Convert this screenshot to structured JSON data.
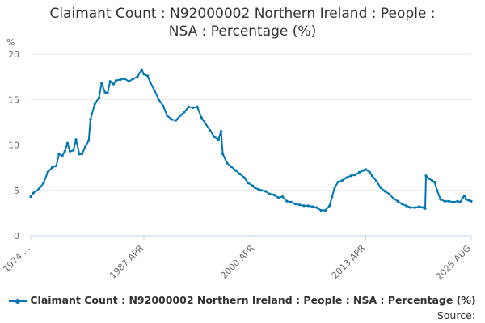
{
  "title_line1": "Claimant Count : N92000002 Northern Ireland : People :",
  "title_line2": "NSA : Percentage (%)",
  "source_label": "Source:",
  "colors": {
    "series": "#0077b3",
    "grid": "#e6e6e6",
    "axis": "#c0d0e0",
    "text": "#666666"
  },
  "chart_data": {
    "type": "line",
    "title": "Claimant Count : N92000002 Northern Ireland : People : NSA : Percentage (%)",
    "ylabel": "%",
    "xlabel": "",
    "ylim": [
      0,
      20
    ],
    "yticks": [
      0,
      5,
      10,
      15,
      20
    ],
    "xlim": [
      1974.0,
      2025.6
    ],
    "xticks": [
      {
        "x": 1974.0,
        "label": "1974 ..."
      },
      {
        "x": 1987.25,
        "label": "1987 APR"
      },
      {
        "x": 2000.25,
        "label": "2000 APR"
      },
      {
        "x": 2013.25,
        "label": "2013 APR"
      },
      {
        "x": 2025.6,
        "label": "2025 AUG"
      }
    ],
    "grid": true,
    "legend_position": "bottom",
    "series": [
      {
        "name": "Claimant Count : N92000002 Northern Ireland : People : NSA : Percentage (%)",
        "points": [
          [
            1974.0,
            4.3
          ],
          [
            1974.3,
            4.7
          ],
          [
            1975.0,
            5.2
          ],
          [
            1975.5,
            5.8
          ],
          [
            1976.0,
            7.0
          ],
          [
            1976.5,
            7.5
          ],
          [
            1977.0,
            7.7
          ],
          [
            1977.3,
            9.0
          ],
          [
            1977.7,
            8.8
          ],
          [
            1978.0,
            9.3
          ],
          [
            1978.3,
            10.2
          ],
          [
            1978.6,
            9.3
          ],
          [
            1979.0,
            9.4
          ],
          [
            1979.3,
            10.6
          ],
          [
            1979.7,
            9.0
          ],
          [
            1980.0,
            9.0
          ],
          [
            1980.4,
            9.8
          ],
          [
            1980.8,
            10.5
          ],
          [
            1981.0,
            12.8
          ],
          [
            1981.5,
            14.5
          ],
          [
            1982.0,
            15.2
          ],
          [
            1982.3,
            16.8
          ],
          [
            1982.7,
            15.8
          ],
          [
            1983.0,
            15.7
          ],
          [
            1983.3,
            17.0
          ],
          [
            1983.7,
            16.7
          ],
          [
            1984.0,
            17.1
          ],
          [
            1984.5,
            17.2
          ],
          [
            1985.0,
            17.3
          ],
          [
            1985.5,
            17.0
          ],
          [
            1986.0,
            17.3
          ],
          [
            1986.5,
            17.5
          ],
          [
            1987.0,
            18.3
          ],
          [
            1987.25,
            17.8
          ],
          [
            1987.7,
            17.6
          ],
          [
            1988.0,
            16.9
          ],
          [
            1988.5,
            16.0
          ],
          [
            1989.0,
            15.0
          ],
          [
            1989.5,
            14.3
          ],
          [
            1990.0,
            13.2
          ],
          [
            1990.5,
            12.8
          ],
          [
            1991.0,
            12.7
          ],
          [
            1991.5,
            13.2
          ],
          [
            1992.0,
            13.6
          ],
          [
            1992.5,
            14.2
          ],
          [
            1993.0,
            14.1
          ],
          [
            1993.5,
            14.2
          ],
          [
            1994.0,
            13.0
          ],
          [
            1994.5,
            12.3
          ],
          [
            1995.0,
            11.6
          ],
          [
            1995.5,
            10.9
          ],
          [
            1996.0,
            10.6
          ],
          [
            1996.3,
            11.5
          ],
          [
            1996.5,
            9.0
          ],
          [
            1997.0,
            8.0
          ],
          [
            1997.5,
            7.6
          ],
          [
            1998.0,
            7.2
          ],
          [
            1998.5,
            6.8
          ],
          [
            1999.0,
            6.4
          ],
          [
            1999.5,
            5.8
          ],
          [
            2000.0,
            5.5
          ],
          [
            2000.25,
            5.3
          ],
          [
            2000.7,
            5.1
          ],
          [
            2001.0,
            5.0
          ],
          [
            2001.5,
            4.9
          ],
          [
            2002.0,
            4.6
          ],
          [
            2002.5,
            4.5
          ],
          [
            2003.0,
            4.2
          ],
          [
            2003.5,
            4.3
          ],
          [
            2004.0,
            3.8
          ],
          [
            2004.5,
            3.7
          ],
          [
            2005.0,
            3.5
          ],
          [
            2005.5,
            3.4
          ],
          [
            2006.0,
            3.3
          ],
          [
            2006.5,
            3.3
          ],
          [
            2007.0,
            3.2
          ],
          [
            2007.5,
            3.1
          ],
          [
            2008.0,
            2.8
          ],
          [
            2008.5,
            2.8
          ],
          [
            2009.0,
            3.3
          ],
          [
            2009.3,
            4.3
          ],
          [
            2009.6,
            5.3
          ],
          [
            2010.0,
            5.9
          ],
          [
            2010.5,
            6.1
          ],
          [
            2011.0,
            6.4
          ],
          [
            2011.5,
            6.6
          ],
          [
            2012.0,
            6.7
          ],
          [
            2012.5,
            7.0
          ],
          [
            2013.0,
            7.2
          ],
          [
            2013.25,
            7.3
          ],
          [
            2013.7,
            7.0
          ],
          [
            2014.0,
            6.6
          ],
          [
            2014.5,
            6.0
          ],
          [
            2015.0,
            5.3
          ],
          [
            2015.5,
            4.9
          ],
          [
            2016.0,
            4.6
          ],
          [
            2016.5,
            4.1
          ],
          [
            2017.0,
            3.8
          ],
          [
            2017.5,
            3.5
          ],
          [
            2018.0,
            3.3
          ],
          [
            2018.5,
            3.1
          ],
          [
            2019.0,
            3.1
          ],
          [
            2019.5,
            3.2
          ],
          [
            2020.0,
            3.1
          ],
          [
            2020.2,
            3.0
          ],
          [
            2020.3,
            6.6
          ],
          [
            2020.6,
            6.3
          ],
          [
            2021.0,
            6.1
          ],
          [
            2021.3,
            5.9
          ],
          [
            2021.6,
            5.0
          ],
          [
            2022.0,
            4.0
          ],
          [
            2022.5,
            3.8
          ],
          [
            2023.0,
            3.8
          ],
          [
            2023.5,
            3.7
          ],
          [
            2024.0,
            3.8
          ],
          [
            2024.3,
            3.7
          ],
          [
            2024.6,
            4.2
          ],
          [
            2024.8,
            4.4
          ],
          [
            2025.0,
            4.0
          ],
          [
            2025.3,
            3.9
          ],
          [
            2025.6,
            3.8
          ]
        ]
      }
    ]
  }
}
